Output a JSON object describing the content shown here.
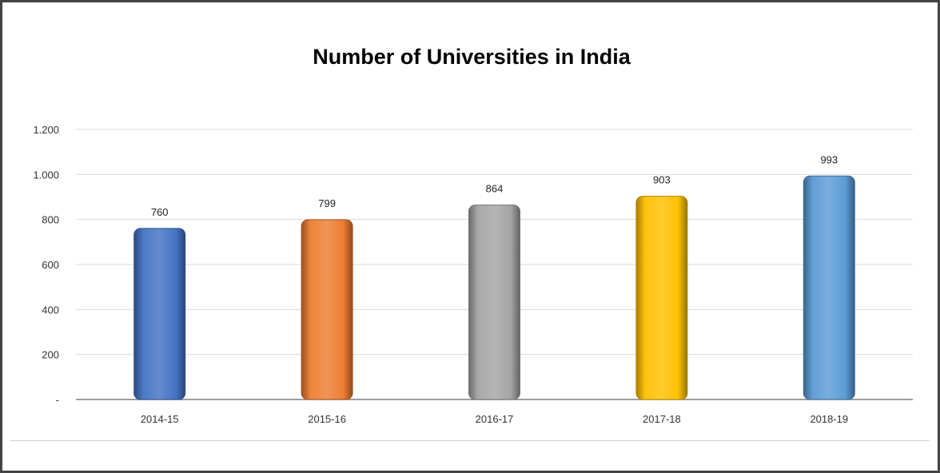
{
  "chart_data": {
    "type": "bar",
    "title": "Number of Universities in India",
    "categories": [
      "2014-15",
      "2015-16",
      "2016-17",
      "2017-18",
      "2018-19"
    ],
    "values": [
      760,
      799,
      864,
      903,
      993
    ],
    "data_labels": [
      "760",
      "799",
      "864",
      "903",
      "993"
    ],
    "colors": [
      "#4472C4",
      "#ED7D31",
      "#A5A5A5",
      "#FFC000",
      "#5B9BD5"
    ],
    "ylim": [
      0,
      1200
    ],
    "yticks": [
      0,
      200,
      400,
      600,
      800,
      1000,
      1200
    ],
    "ytick_labels": [
      "-",
      "200",
      "400",
      "600",
      "800",
      "1.000",
      "1.200"
    ],
    "xlabel": "",
    "ylabel": "",
    "grid": true,
    "legend": "none"
  }
}
